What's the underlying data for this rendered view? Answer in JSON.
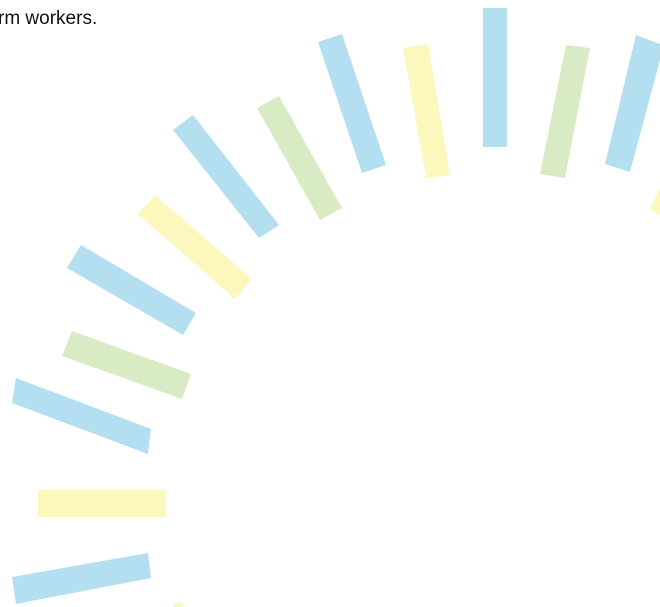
{
  "text": "rm workers."
}
